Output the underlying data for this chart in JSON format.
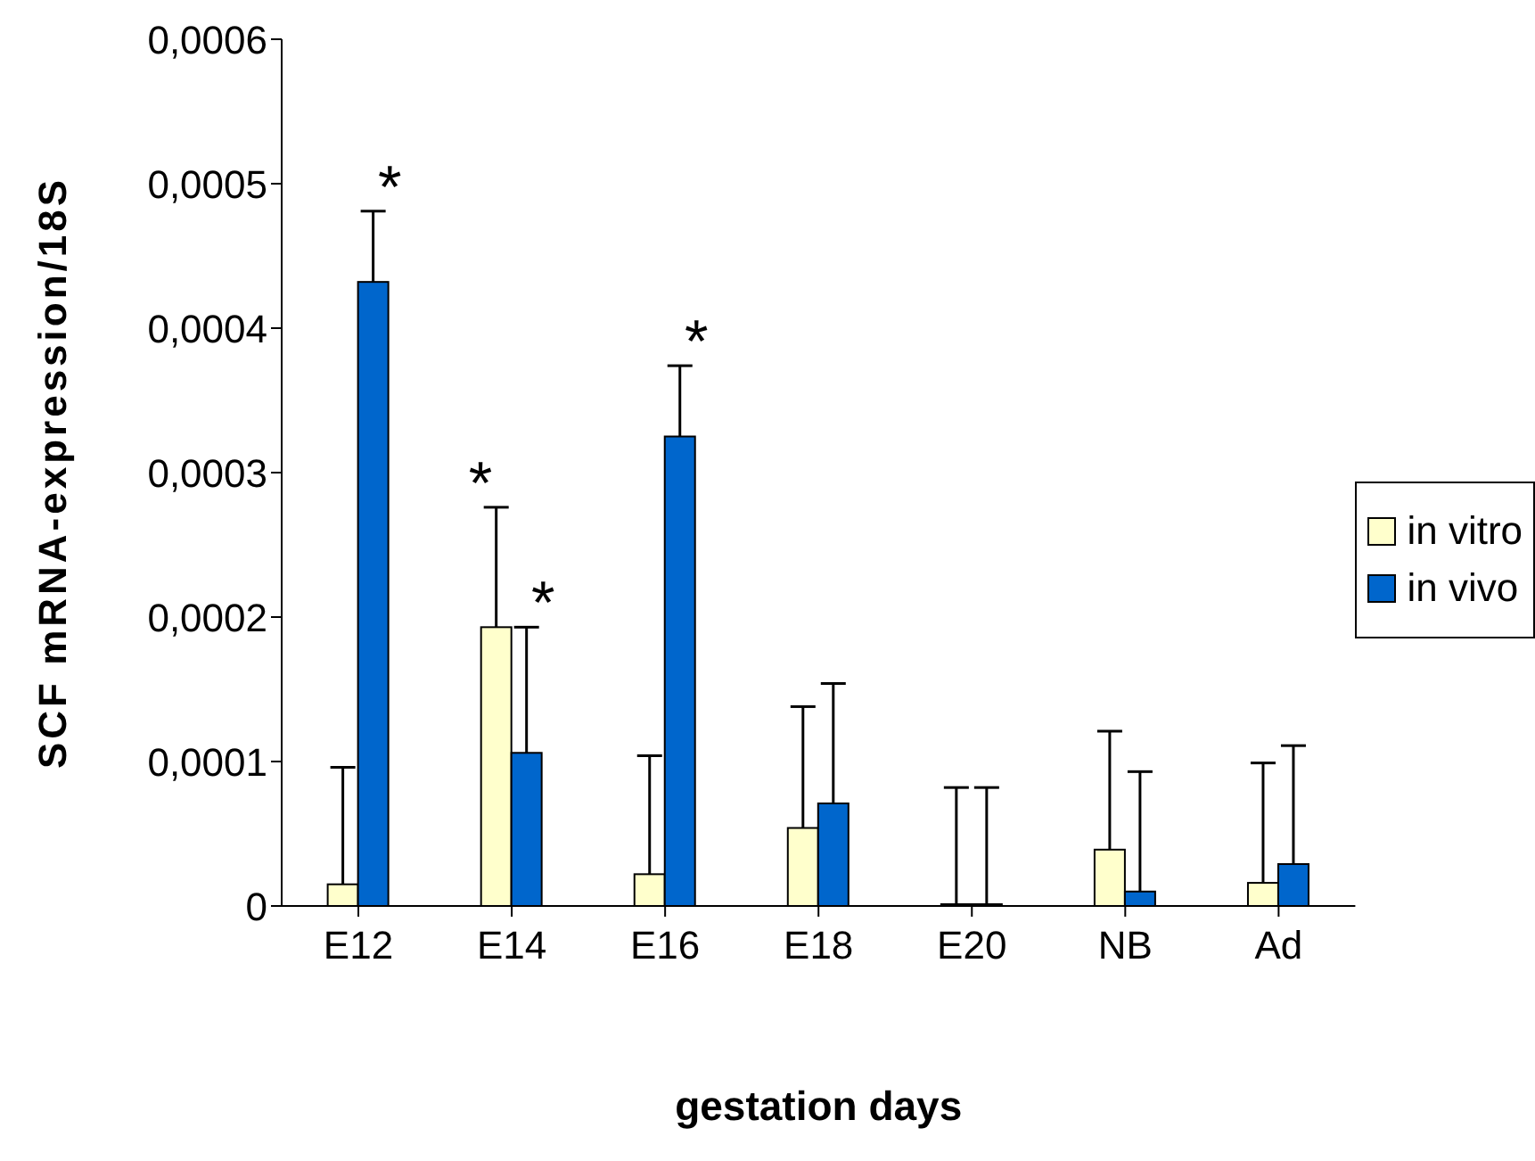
{
  "chart_data": {
    "type": "bar",
    "xlabel": "gestation days",
    "ylabel": "SCF mRNA-expression/18S",
    "categories": [
      "E12",
      "E14",
      "E16",
      "E18",
      "E20",
      "NB",
      "Ad"
    ],
    "series": [
      {
        "name": "in vitro",
        "color": "#ffffcc",
        "values": [
          1.5e-05,
          0.000193,
          2.2e-05,
          5.4e-05,
          0,
          3.9e-05,
          1.6e-05
        ],
        "errors": [
          [
            1.5e-05,
            9.6e-05
          ],
          [
            0.000193,
            0.000276
          ],
          [
            2.2e-05,
            0.000104
          ],
          [
            5.4e-05,
            0.000138
          ],
          [
            0,
            8.2e-05
          ],
          [
            3.9e-05,
            0.000121
          ],
          [
            1.6e-05,
            9.9e-05
          ]
        ]
      },
      {
        "name": "in vivo",
        "color": "#0066cc",
        "values": [
          0.000432,
          0.000106,
          0.000325,
          7.1e-05,
          0,
          1e-05,
          2.9e-05
        ],
        "errors": [
          [
            0.000432,
            0.000481
          ],
          [
            0.000106,
            0.000193
          ],
          [
            0.000325,
            0.000374
          ],
          [
            7.1e-05,
            0.000154
          ],
          [
            0,
            8.2e-05
          ],
          [
            1e-05,
            9.3e-05
          ],
          [
            2.9e-05,
            0.000111
          ]
        ]
      }
    ],
    "ylim": [
      0,
      0.0006
    ],
    "yticks": [
      0,
      {
        "value": 0.0001,
        "label": "0,0001"
      },
      {
        "value": 0.0002,
        "label": "0,0002"
      },
      {
        "value": 0.0003,
        "label": "0,0003"
      },
      {
        "value": 0.0004,
        "label": "0,0004"
      },
      {
        "value": 0.0005,
        "label": "0,0005"
      },
      {
        "value": 0.0006,
        "label": "0,0006"
      }
    ],
    "annotations": [
      {
        "text": "*",
        "x": "E12",
        "y": 0.000481
      },
      {
        "text": "*",
        "x": "E14",
        "y": 0.000276
      },
      {
        "text": "*",
        "x": "E14",
        "y": 0.000193
      },
      {
        "text": "*",
        "x": "E16",
        "y": 0.000374
      }
    ],
    "legend": "right",
    "grid": false
  }
}
